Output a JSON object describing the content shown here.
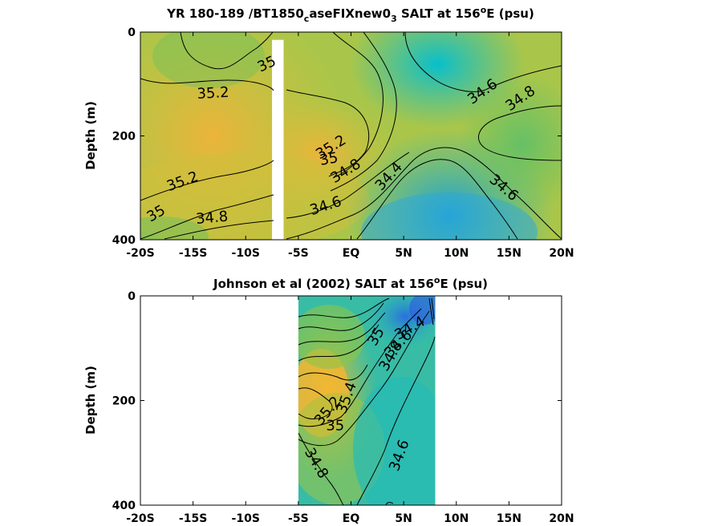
{
  "chart_data": [
    {
      "type": "heatmap",
      "title_main": "YR 180-189 /BT1850",
      "title_sub": "c",
      "title_mid": "aseFIXnew0",
      "title_sub2": "3",
      "title_tail": " SALT at 156",
      "title_sup": "o",
      "title_end": "E (psu)",
      "ylabel": "Depth (m)",
      "xlim": [
        -20,
        20
      ],
      "ylim": [
        0,
        400
      ],
      "x_ticks": [
        -20,
        -15,
        -10,
        -5,
        0,
        5,
        10,
        15,
        20
      ],
      "x_tick_labels": [
        "-20S",
        "-15S",
        "-10S",
        "-5S",
        "EQ",
        "5N",
        "10N",
        "15N",
        "20N"
      ],
      "y_ticks": [
        0,
        200,
        400
      ],
      "y_tick_labels": [
        "0",
        "200",
        "400"
      ],
      "data_gap_lat": [
        -7.5,
        -6.4
      ],
      "data_gap_depth": [
        15,
        400
      ],
      "contour_labels": [
        {
          "text": "35",
          "lat": -8.0,
          "depth": 62,
          "angle": -25
        },
        {
          "text": "35.2",
          "lat": -13.1,
          "depth": 118,
          "angle": -3
        },
        {
          "text": "35.2",
          "lat": -16.0,
          "depth": 288,
          "angle": -20
        },
        {
          "text": "35",
          "lat": -18.5,
          "depth": 350,
          "angle": -30
        },
        {
          "text": "34.8",
          "lat": -13.2,
          "depth": 358,
          "angle": -5
        },
        {
          "text": "35.2",
          "lat": -1.9,
          "depth": 222,
          "angle": -32
        },
        {
          "text": "35",
          "lat": -2.1,
          "depth": 245,
          "angle": -10
        },
        {
          "text": "34.8",
          "lat": -0.5,
          "depth": 268,
          "angle": -32
        },
        {
          "text": "34.6",
          "lat": -2.4,
          "depth": 335,
          "angle": -18
        },
        {
          "text": "34.4",
          "lat": 3.6,
          "depth": 278,
          "angle": -48
        },
        {
          "text": "34.6",
          "lat": 12.5,
          "depth": 115,
          "angle": -35
        },
        {
          "text": "34.8",
          "lat": 16.1,
          "depth": 128,
          "angle": -35
        },
        {
          "text": "34.6",
          "lat": 14.5,
          "depth": 300,
          "angle": 40
        }
      ]
    },
    {
      "type": "heatmap",
      "title_main": "Johnson et al (2002) SALT at 156",
      "title_sup": "o",
      "title_end": "E (psu)",
      "ylabel": "Depth (m)",
      "xlim": [
        -20,
        20
      ],
      "ylim": [
        0,
        400
      ],
      "data_lat_range": [
        -5,
        8
      ],
      "x_ticks": [
        -20,
        -15,
        -10,
        -5,
        0,
        5,
        10,
        15,
        20
      ],
      "x_tick_labels": [
        "-20S",
        "-15S",
        "-10S",
        "-5S",
        "EQ",
        "5N",
        "10N",
        "15N",
        "20N"
      ],
      "y_ticks": [
        0,
        200,
        400
      ],
      "y_tick_labels": [
        "0",
        "200",
        "400"
      ],
      "contour_labels": [
        {
          "text": "34.4",
          "lat": 5.6,
          "depth": 62,
          "angle": -30
        },
        {
          "text": "34.6",
          "lat": 4.5,
          "depth": 92,
          "angle": -45
        },
        {
          "text": "34.8",
          "lat": 3.8,
          "depth": 115,
          "angle": -60
        },
        {
          "text": "35",
          "lat": 2.4,
          "depth": 78,
          "angle": -60
        },
        {
          "text": "35.4",
          "lat": -0.4,
          "depth": 195,
          "angle": -70
        },
        {
          "text": "35.2",
          "lat": -2.2,
          "depth": 220,
          "angle": -50
        },
        {
          "text": "35",
          "lat": -1.5,
          "depth": 248,
          "angle": 0
        },
        {
          "text": "34.8",
          "lat": -3.3,
          "depth": 320,
          "angle": 60
        },
        {
          "text": "34.6",
          "lat": 4.6,
          "depth": 305,
          "angle": -70
        }
      ]
    }
  ]
}
